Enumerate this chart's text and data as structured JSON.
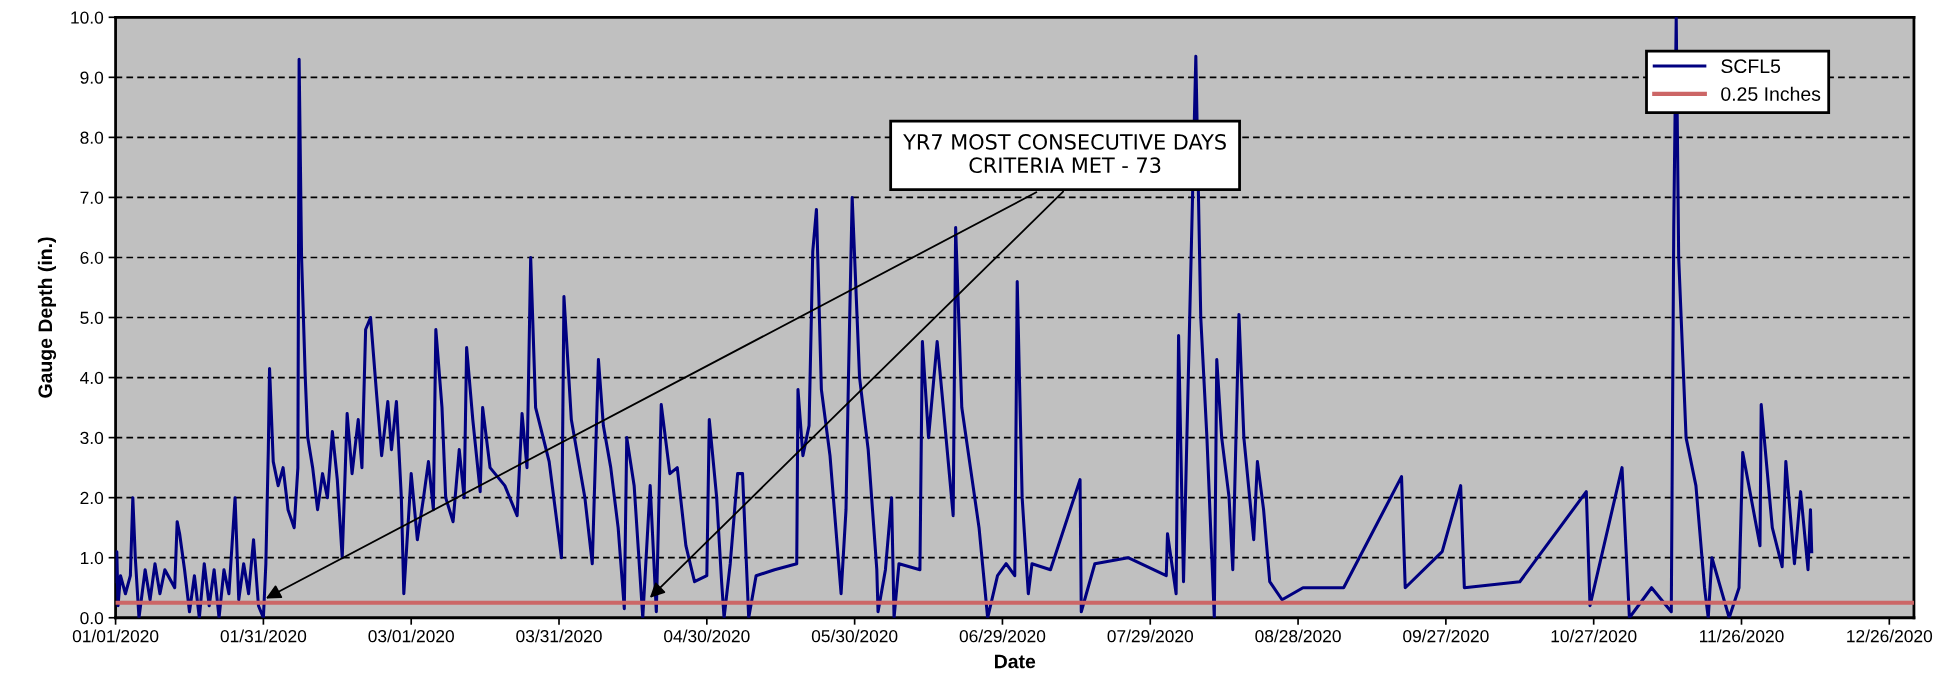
{
  "chart_data": {
    "type": "line",
    "xlabel": "Date",
    "ylabel": "Gauge Depth (in.)",
    "x": [
      "2020-01-01T00:00",
      "2020-01-01T06:00",
      "2020-01-01T12:00",
      "2020-01-02",
      "2020-01-03",
      "2020-01-04",
      "2020-01-04T12:00",
      "2020-01-05",
      "2020-01-05T18:00",
      "2020-01-07",
      "2020-01-08",
      "2020-01-09",
      "2020-01-10",
      "2020-01-11",
      "2020-01-13",
      "2020-01-13T12:00",
      "2020-01-14",
      "2020-01-15",
      "2020-01-16",
      "2020-01-17",
      "2020-01-18",
      "2020-01-19",
      "2020-01-20",
      "2020-01-21",
      "2020-01-22",
      "2020-01-23",
      "2020-01-24",
      "2020-01-25T06:00",
      "2020-01-26",
      "2020-01-27",
      "2020-01-28",
      "2020-01-29",
      "2020-01-30",
      "2020-01-31",
      "2020-01-31T12:00",
      "2020-02-01",
      "2020-02-01T06:00",
      "2020-02-02",
      "2020-02-03",
      "2020-02-04",
      "2020-02-05",
      "2020-02-06T06:00",
      "2020-02-07",
      "2020-02-07T06:00",
      "2020-02-07T18:00",
      "2020-02-08T12:00",
      "2020-02-09",
      "2020-02-10",
      "2020-02-11",
      "2020-02-12",
      "2020-02-13",
      "2020-02-14",
      "2020-02-15",
      "2020-02-16",
      "2020-02-17",
      "2020-02-18",
      "2020-02-19T06:00",
      "2020-02-20",
      "2020-02-20T18:00",
      "2020-02-21T18:00",
      "2020-02-23",
      "2020-02-24",
      "2020-02-25T06:00",
      "2020-02-26",
      "2020-02-27",
      "2020-02-28",
      "2020-02-28T12:00",
      "2020-03-01",
      "2020-03-02T06:00",
      "2020-03-03T12:00",
      "2020-03-04T12:00",
      "2020-03-05T12:00",
      "2020-03-06",
      "2020-03-07T06:00",
      "2020-03-08",
      "2020-03-09T12:00",
      "2020-03-10T18:00",
      "2020-03-11T18:00",
      "2020-03-12T06:00",
      "2020-03-13T12:00",
      "2020-03-15",
      "2020-03-15T12:00",
      "2020-03-17",
      "2020-03-20",
      "2020-03-22T12:00",
      "2020-03-23T12:00",
      "2020-03-24T12:00",
      "2020-03-25T06:00",
      "2020-03-26T06:00",
      "2020-03-29",
      "2020-03-31T12:00",
      "2020-04-01",
      "2020-04-02T12:00",
      "2020-04-05T06:00",
      "2020-04-06T18:00",
      "2020-04-08",
      "2020-04-09",
      "2020-04-10T12:00",
      "2020-04-12",
      "2020-04-13T06:00",
      "2020-04-13T18:00",
      "2020-04-15T06:00",
      "2020-04-17",
      "2020-04-18T12:00",
      "2020-04-19T18:00",
      "2020-04-20T18:00",
      "2020-04-22T12:00",
      "2020-04-24",
      "2020-04-25T18:00",
      "2020-04-27T12:00",
      "2020-04-30",
      "2020-04-30T12:00",
      "2020-05-02",
      "2020-05-03",
      "2020-05-03T12:00",
      "2020-05-04T18:00",
      "2020-05-06T06:00",
      "2020-05-07T06:00",
      "2020-05-08T12:00",
      "2020-05-10",
      "2020-05-13T18:00",
      "2020-05-18T06:00",
      "2020-05-18T12:00",
      "2020-05-19T12:00",
      "2020-05-20T18:00",
      "2020-05-21T12:00",
      "2020-05-22T06:00",
      "2020-05-23T06:00",
      "2020-05-25",
      "2020-05-27T06:00",
      "2020-05-28T06:00",
      "2020-05-28T18:00",
      "2020-05-29T12:00",
      "2020-05-31",
      "2020-06-01T18:00",
      "2020-06-03T12:00",
      "2020-06-03T18:00",
      "2020-06-05T06:00",
      "2020-06-06T12:00",
      "2020-06-07",
      "2020-06-08",
      "2020-06-12T06:00",
      "2020-06-12T18:00",
      "2020-06-14",
      "2020-06-15T18:00",
      "2020-06-17",
      "2020-06-19",
      "2020-06-19T12:00",
      "2020-06-20T18:00",
      "2020-06-22T12:00",
      "2020-06-24T06:00",
      "2020-06-26",
      "2020-06-28",
      "2020-06-29T18:00",
      "2020-07-01T12:00",
      "2020-07-02",
      "2020-07-03",
      "2020-07-04T06:00",
      "2020-07-05",
      "2020-07-08T18:00",
      "2020-07-14T18:00",
      "2020-07-15",
      "2020-07-17T18:00",
      "2020-07-24T12:00",
      "2020-08-01T06:00",
      "2020-08-01T12:00",
      "2020-08-03T06:00",
      "2020-08-03T18:00",
      "2020-08-04T18:00",
      "2020-08-07T06:00",
      "2020-08-08T06:00",
      "2020-08-09T12:00",
      "2020-08-11",
      "2020-08-11T12:00",
      "2020-08-12T12:00",
      "2020-08-14",
      "2020-08-14T18:00",
      "2020-08-16",
      "2020-08-17",
      "2020-08-19",
      "2020-08-19T18:00",
      "2020-08-21",
      "2020-08-22T06:00",
      "2020-08-24T18:00",
      "2020-08-29",
      "2020-09-06T06:00",
      "2020-09-18",
      "2020-09-18T18:00",
      "2020-09-26T06:00",
      "2020-09-30",
      "2020-09-30T18:00",
      "2020-10-12",
      "2020-10-25T12:00",
      "2020-10-26T06:00",
      "2020-11-01T18:00",
      "2020-11-03T06:00",
      "2020-11-07T18:00",
      "2020-11-11T18:00",
      "2020-11-12T06:00",
      "2020-11-12T18:00",
      "2020-11-13T06:00",
      "2020-11-14T18:00",
      "2020-11-16T18:00",
      "2020-11-18T12:00",
      "2020-11-19T06:00",
      "2020-11-20",
      "2020-11-23T12:00",
      "2020-11-25T12:00",
      "2020-11-26T06:00",
      "2020-11-29T18:00",
      "2020-11-30",
      "2020-12-02T06:00",
      "2020-12-04T06:00",
      "2020-12-05",
      "2020-12-06T18:00",
      "2020-12-08",
      "2020-12-09T12:00",
      "2020-12-10",
      "2020-12-10T06:00"
    ],
    "series": [
      {
        "name": "SCFL5",
        "color": "#000080",
        "values": [
          0.6,
          1.1,
          0.2,
          0.7,
          0.4,
          0.7,
          2.0,
          1.0,
          0.0,
          0.8,
          0.3,
          0.9,
          0.4,
          0.8,
          0.5,
          1.6,
          1.4,
          0.8,
          0.1,
          0.7,
          0.0,
          0.9,
          0.2,
          0.8,
          0.0,
          0.8,
          0.4,
          2.0,
          0.3,
          0.9,
          0.4,
          1.3,
          0.2,
          0.0,
          0.9,
          2.8,
          4.15,
          2.6,
          2.2,
          2.5,
          1.8,
          1.5,
          2.5,
          9.3,
          6.0,
          4.0,
          3.0,
          2.5,
          1.8,
          2.4,
          2.0,
          3.1,
          2.3,
          1.0,
          3.4,
          2.4,
          3.3,
          2.5,
          4.8,
          5.0,
          3.7,
          2.7,
          3.6,
          2.8,
          3.6,
          2.0,
          0.4,
          2.4,
          1.3,
          2.0,
          2.6,
          1.8,
          4.8,
          3.5,
          2.0,
          1.6,
          2.8,
          2.0,
          4.5,
          3.3,
          2.1,
          3.5,
          2.5,
          2.2,
          1.7,
          3.4,
          2.5,
          6.0,
          3.5,
          2.6,
          1.0,
          5.35,
          3.3,
          2.0,
          0.9,
          4.3,
          3.2,
          2.5,
          1.5,
          0.15,
          3.0,
          2.2,
          0.0,
          2.2,
          0.1,
          3.55,
          2.4,
          2.5,
          1.2,
          0.6,
          0.7,
          3.3,
          2.0,
          0.6,
          0.0,
          0.9,
          2.4,
          2.4,
          0.0,
          0.7,
          0.8,
          0.9,
          3.8,
          2.7,
          3.2,
          6.1,
          6.8,
          3.8,
          2.7,
          0.4,
          1.8,
          4.0,
          7.0,
          4.0,
          2.8,
          0.8,
          0.1,
          0.8,
          2.0,
          0.0,
          0.9,
          0.8,
          4.6,
          3.0,
          4.6,
          3.5,
          1.7,
          6.5,
          3.5,
          2.5,
          1.5,
          0.0,
          0.7,
          0.9,
          0.7,
          5.6,
          2.0,
          0.4,
          0.9,
          0.8,
          2.3,
          0.1,
          0.9,
          1.0,
          0.7,
          1.4,
          0.4,
          4.7,
          0.6,
          9.35,
          5.0,
          3.0,
          0.0,
          4.3,
          3.0,
          2.0,
          0.8,
          5.05,
          3.0,
          1.3,
          2.6,
          1.8,
          0.6,
          0.3,
          0.5,
          0.5,
          2.35,
          0.5,
          1.1,
          2.2,
          0.5,
          0.6,
          2.1,
          0.2,
          2.5,
          0.0,
          0.5,
          0.1,
          6.5,
          10.0,
          6.0,
          3.0,
          2.2,
          0.5,
          0.0,
          1.0,
          0.0,
          0.5,
          2.75,
          1.2,
          3.55,
          1.5,
          0.85,
          2.6,
          0.9,
          2.1,
          0.8,
          1.8,
          1.1
        ]
      }
    ],
    "ref_lines": [
      {
        "axis": "y",
        "value": 0.25,
        "label": "0.25 Inches",
        "color": "#cc6666"
      }
    ],
    "annotations": [
      {
        "text": "YR7 MOST CONSECUTIVE DAYS\nCRITERIA MET - 73",
        "x": "2020-01-31",
        "y": 0.3
      }
    ],
    "xlim": [
      "2020-01-01",
      "2020-12-31"
    ],
    "xticks": [
      {
        "value": "2020-01-01",
        "label": "01/01/2020"
      },
      {
        "value": "2020-01-31",
        "label": "01/31/2020"
      },
      {
        "value": "2020-03-01",
        "label": "03/01/2020"
      },
      {
        "value": "2020-03-31",
        "label": "03/31/2020"
      },
      {
        "value": "2020-04-30",
        "label": "04/30/2020"
      },
      {
        "value": "2020-05-30",
        "label": "05/30/2020"
      },
      {
        "value": "2020-06-29",
        "label": "06/29/2020"
      },
      {
        "value": "2020-07-29",
        "label": "07/29/2020"
      },
      {
        "value": "2020-08-28",
        "label": "08/28/2020"
      },
      {
        "value": "2020-09-27",
        "label": "09/27/2020"
      },
      {
        "value": "2020-10-27",
        "label": "10/27/2020"
      },
      {
        "value": "2020-11-26",
        "label": "11/26/2020"
      },
      {
        "value": "2020-12-26",
        "label": "12/26/2020"
      }
    ],
    "ylim": [
      0,
      10
    ],
    "yticks": [
      {
        "value": 0,
        "label": "0.0"
      },
      {
        "value": 1,
        "label": "1.0"
      },
      {
        "value": 2,
        "label": "2.0"
      },
      {
        "value": 3,
        "label": "3.0"
      },
      {
        "value": 4,
        "label": "4.0"
      },
      {
        "value": 5,
        "label": "5.0"
      },
      {
        "value": 6,
        "label": "6.0"
      },
      {
        "value": 7,
        "label": "7.0"
      },
      {
        "value": 8,
        "label": "8.0"
      },
      {
        "value": 9,
        "label": "9.0"
      },
      {
        "value": 10,
        "label": "10.0"
      }
    ],
    "grid": "y",
    "legend": "top right",
    "marker": "none",
    "line_style": "solid"
  }
}
